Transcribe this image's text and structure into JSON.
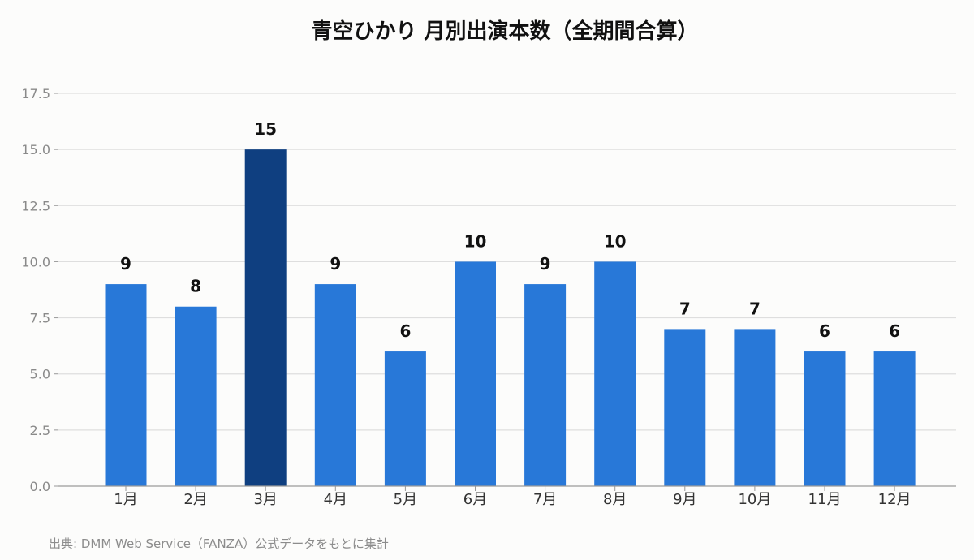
{
  "chart_data": {
    "type": "bar",
    "title": "青空ひかり 月別出演本数（全期間合算）",
    "categories": [
      "1月",
      "2月",
      "3月",
      "4月",
      "5月",
      "6月",
      "7月",
      "8月",
      "9月",
      "10月",
      "11月",
      "12月"
    ],
    "values": [
      9,
      8,
      15,
      9,
      6,
      10,
      9,
      10,
      7,
      7,
      6,
      6
    ],
    "yticks": [
      "0.0",
      "2.5",
      "5.0",
      "7.5",
      "10.0",
      "12.5",
      "15.0",
      "17.5"
    ],
    "ylim": [
      0,
      17.5
    ],
    "grid": true,
    "bar_color": "#2878d8",
    "highlight_color": "#0f3f80",
    "highlight_category": "3月",
    "xlabel": "",
    "ylabel": ""
  },
  "footer": {
    "source": "出典: DMM Web Service（FANZA）公式データをもとに集計"
  }
}
